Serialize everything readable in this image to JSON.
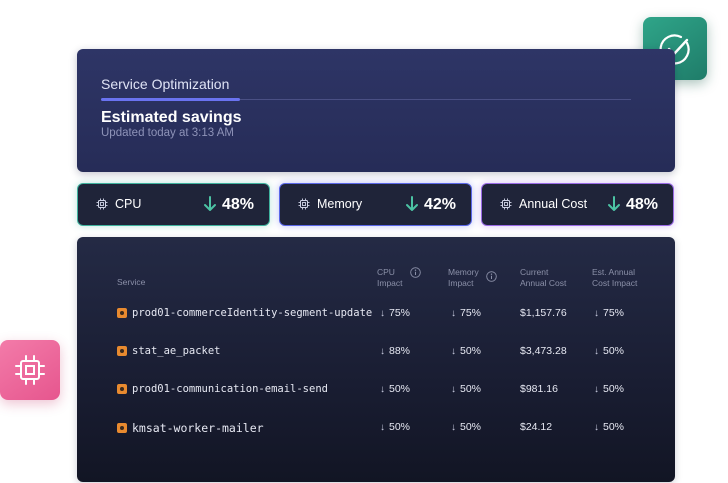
{
  "header": {
    "tab_label": "Service Optimization",
    "title": "Estimated savings",
    "subtitle": "Updated today at 3:13 AM"
  },
  "badges": {
    "top_icon": "check-circle-icon",
    "side_icon": "chip-icon"
  },
  "metrics": [
    {
      "label": "CPU",
      "value": "48%",
      "icon": "chip-icon",
      "accent": "#3fb29e"
    },
    {
      "label": "Memory",
      "value": "42%",
      "icon": "chip-icon",
      "accent": "#5a67e8"
    },
    {
      "label": "Annual Cost",
      "value": "48%",
      "icon": "chip-icon",
      "accent": "#9a6ae6"
    }
  ],
  "table": {
    "headers": {
      "service": "Service",
      "cpu_l1": "CPU",
      "cpu_l2": "Impact",
      "mem_l1": "Memory",
      "mem_l2": "Impact",
      "cost_l1": "Current",
      "cost_l2": "Annual Cost",
      "est_l1": "Est. Annual",
      "est_l2": "Cost Impact"
    },
    "rows": [
      {
        "service": "prod01-commerceIdentity-segment-update",
        "cpu": "75%",
        "memory": "75%",
        "cost": "$1,157.76",
        "est": "75%"
      },
      {
        "service": "stat_ae_packet",
        "cpu": "88%",
        "memory": "50%",
        "cost": "$3,473.28",
        "est": "50%"
      },
      {
        "service": "prod01-communication-email-send",
        "cpu": "50%",
        "memory": "50%",
        "cost": "$981.16",
        "est": "50%"
      },
      {
        "service": "kmsat-worker-mailer",
        "cpu": "50%",
        "memory": "50%",
        "cost": "$24.12",
        "est": "50%"
      }
    ]
  },
  "colors": {
    "positive": "#4cc3a4",
    "row_icon": "#e88a2f"
  }
}
